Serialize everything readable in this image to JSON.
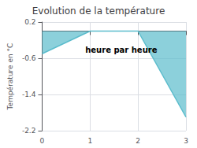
{
  "chart_data": {
    "type": "area",
    "title": "Evolution de la température",
    "ylabel": "Température en °C",
    "x": [
      0,
      1,
      2,
      3
    ],
    "values": [
      -0.5,
      0.0,
      0.0,
      -1.9
    ],
    "color": "#5bbccc",
    "xlim": [
      0,
      3
    ],
    "xticks": [
      0,
      1,
      2,
      3
    ],
    "ylim": [
      -2.2,
      0.2
    ],
    "yticks": [
      0.2,
      -0.6,
      -1.4,
      -2.2
    ],
    "grid": true,
    "annotations": [
      {
        "text": "heure par heure",
        "x": 1.65,
        "y": -0.42
      }
    ]
  }
}
